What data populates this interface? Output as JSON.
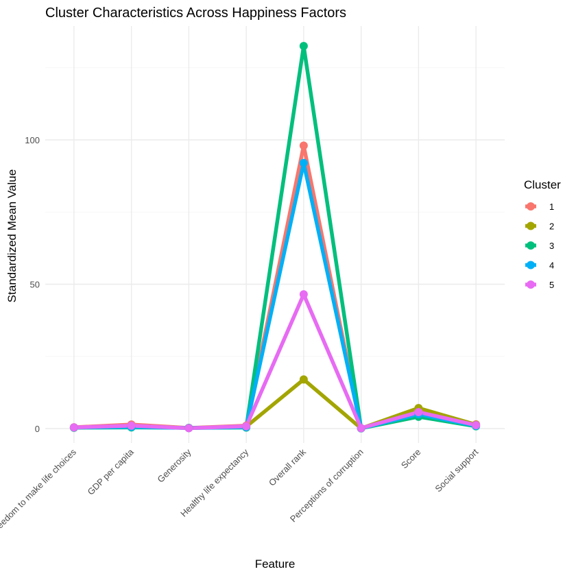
{
  "chart_data": {
    "type": "line",
    "title": "Cluster Characteristics Across Happiness Factors",
    "xlabel": "Feature",
    "ylabel": "Standardized Mean Value",
    "categories": [
      "Freedom to make life choices",
      "GDP per capita",
      "Generosity",
      "Healthy life expectancy",
      "Overall rank",
      "Perceptions of corruption",
      "Score",
      "Social support"
    ],
    "y_ticks": [
      0,
      50,
      100
    ],
    "ylim": [
      -6.5,
      139
    ],
    "grid": true,
    "legend": {
      "title": "Cluster",
      "position": "right"
    },
    "series": [
      {
        "name": "1",
        "color": "#F8766D",
        "values": [
          0.45,
          1.4,
          0.2,
          1.0,
          98.0,
          0.12,
          6.0,
          1.45
        ]
      },
      {
        "name": "2",
        "color": "#A3A500",
        "values": [
          0.3,
          0.9,
          0.22,
          0.7,
          17.0,
          0.08,
          7.1,
          1.35
        ]
      },
      {
        "name": "3",
        "color": "#00BF7D",
        "values": [
          0.3,
          0.4,
          0.25,
          0.35,
          132.5,
          0.1,
          4.1,
          0.8
        ]
      },
      {
        "name": "4",
        "color": "#00B0F6",
        "values": [
          0.35,
          0.6,
          0.18,
          0.5,
          92.0,
          0.1,
          5.0,
          0.95
        ]
      },
      {
        "name": "5",
        "color": "#E76BF3",
        "values": [
          0.4,
          1.0,
          0.15,
          0.8,
          46.5,
          0.14,
          5.7,
          1.2
        ]
      }
    ]
  }
}
